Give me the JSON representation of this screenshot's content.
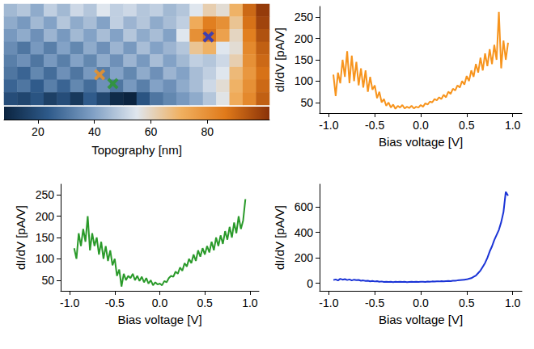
{
  "chart_data": [
    {
      "type": "heatmap",
      "tick_labels": false,
      "xlim": [
        0,
        20
      ],
      "ylim": [
        0,
        8
      ],
      "cells": [
        [
          45,
          48,
          42,
          50,
          45,
          52,
          48,
          55,
          50,
          52,
          48,
          50,
          45,
          48,
          55,
          62,
          58,
          70,
          90,
          100
        ],
        [
          42,
          38,
          45,
          40,
          48,
          42,
          46,
          40,
          50,
          44,
          48,
          42,
          46,
          50,
          72,
          85,
          80,
          65,
          88,
          98
        ],
        [
          38,
          42,
          36,
          44,
          38,
          45,
          40,
          46,
          40,
          48,
          42,
          46,
          40,
          55,
          80,
          88,
          75,
          60,
          85,
          95
        ],
        [
          35,
          30,
          38,
          32,
          40,
          34,
          42,
          36,
          44,
          38,
          46,
          40,
          44,
          48,
          65,
          70,
          55,
          58,
          82,
          92
        ],
        [
          32,
          36,
          30,
          38,
          32,
          40,
          34,
          42,
          36,
          44,
          38,
          46,
          40,
          45,
          50,
          48,
          52,
          62,
          80,
          90
        ],
        [
          30,
          26,
          34,
          28,
          36,
          30,
          38,
          32,
          40,
          34,
          42,
          36,
          44,
          40,
          46,
          50,
          55,
          68,
          78,
          88
        ],
        [
          26,
          30,
          24,
          32,
          26,
          34,
          28,
          36,
          30,
          38,
          32,
          40,
          36,
          42,
          46,
          52,
          58,
          70,
          80,
          90
        ],
        [
          20,
          18,
          22,
          16,
          20,
          14,
          24,
          18,
          10,
          8,
          22,
          30,
          34,
          38,
          42,
          48,
          56,
          72,
          82,
          92
        ]
      ],
      "colorbar": {
        "label": "Topography [nm]",
        "range": [
          8,
          102
        ],
        "ticks": [
          20,
          40,
          60,
          80
        ]
      },
      "marker": "x",
      "markers": [
        {
          "color": "#f7941d",
          "x": 7.2,
          "y": 5.6
        },
        {
          "color": "#2a9a2a",
          "x": 8.2,
          "y": 6.3
        },
        {
          "color": "#1a33d6",
          "x": 15.4,
          "y": 2.6
        }
      ]
    },
    {
      "type": "line",
      "xlabel": "Bias voltage [V]",
      "ylabel": "dI/dV [pA/V]",
      "grid": false,
      "xlim": [
        -1.1,
        1.1
      ],
      "xticks": [
        {
          "value": -1,
          "label": "-1.0"
        },
        {
          "value": -0.5,
          "label": "-0.5"
        },
        {
          "value": 0,
          "label": "0.0"
        },
        {
          "value": 0.5,
          "label": "0.5"
        },
        {
          "value": 1,
          "label": "1.0"
        }
      ],
      "ylim": [
        25,
        275
      ],
      "yticks": [
        50,
        100,
        150,
        200,
        250
      ],
      "x": [
        -0.95,
        -0.925,
        -0.9,
        -0.875,
        -0.85,
        -0.825,
        -0.8,
        -0.775,
        -0.75,
        -0.725,
        -0.7,
        -0.675,
        -0.65,
        -0.625,
        -0.6,
        -0.575,
        -0.55,
        -0.525,
        -0.5,
        -0.475,
        -0.45,
        -0.425,
        -0.4,
        -0.375,
        -0.35,
        -0.325,
        -0.3,
        -0.275,
        -0.25,
        -0.225,
        -0.2,
        -0.175,
        -0.15,
        -0.125,
        -0.1,
        -0.075,
        -0.05,
        -0.025,
        0,
        0.025,
        0.05,
        0.075,
        0.1,
        0.125,
        0.15,
        0.175,
        0.2,
        0.225,
        0.25,
        0.275,
        0.3,
        0.325,
        0.35,
        0.375,
        0.4,
        0.425,
        0.45,
        0.475,
        0.5,
        0.525,
        0.55,
        0.575,
        0.6,
        0.625,
        0.65,
        0.675,
        0.7,
        0.725,
        0.75,
        0.775,
        0.8,
        0.825,
        0.85,
        0.875,
        0.9,
        0.925,
        0.95
      ],
      "series": [
        {
          "color": "#f7941d",
          "values": [
            115,
            65,
            120,
            95,
            150,
            110,
            170,
            95,
            160,
            100,
            145,
            90,
            130,
            85,
            125,
            75,
            110,
            80,
            90,
            60,
            75,
            50,
            58,
            42,
            50,
            38,
            45,
            35,
            42,
            38,
            44,
            36,
            40,
            37,
            42,
            36,
            40,
            38,
            44,
            40,
            48,
            45,
            52,
            50,
            58,
            55,
            62,
            58,
            68,
            62,
            75,
            70,
            82,
            78,
            90,
            85,
            100,
            92,
            112,
            100,
            125,
            110,
            140,
            120,
            155,
            125,
            165,
            135,
            175,
            140,
            185,
            150,
            262,
            130,
            195,
            150,
            190
          ]
        }
      ]
    },
    {
      "type": "line",
      "xlabel": "Bias voltage [V]",
      "ylabel": "dI/dV [pA/V]",
      "grid": false,
      "xlim": [
        -1.1,
        1.1
      ],
      "xticks": [
        {
          "value": -1,
          "label": "-1.0"
        },
        {
          "value": -0.5,
          "label": "-0.5"
        },
        {
          "value": 0,
          "label": "0.0"
        },
        {
          "value": 0.5,
          "label": "0.5"
        },
        {
          "value": 1,
          "label": "1.0"
        }
      ],
      "ylim": [
        25,
        275
      ],
      "yticks": [
        50,
        100,
        150,
        200,
        250
      ],
      "x": [
        -0.95,
        -0.925,
        -0.9,
        -0.875,
        -0.85,
        -0.825,
        -0.8,
        -0.775,
        -0.75,
        -0.725,
        -0.7,
        -0.675,
        -0.65,
        -0.625,
        -0.6,
        -0.575,
        -0.55,
        -0.525,
        -0.5,
        -0.475,
        -0.45,
        -0.425,
        -0.4,
        -0.375,
        -0.35,
        -0.325,
        -0.3,
        -0.275,
        -0.25,
        -0.225,
        -0.2,
        -0.175,
        -0.15,
        -0.125,
        -0.1,
        -0.075,
        -0.05,
        -0.025,
        0,
        0.025,
        0.05,
        0.075,
        0.1,
        0.125,
        0.15,
        0.175,
        0.2,
        0.225,
        0.25,
        0.275,
        0.3,
        0.325,
        0.35,
        0.375,
        0.4,
        0.425,
        0.45,
        0.475,
        0.5,
        0.525,
        0.55,
        0.575,
        0.6,
        0.625,
        0.65,
        0.675,
        0.7,
        0.725,
        0.75,
        0.775,
        0.8,
        0.825,
        0.85,
        0.875,
        0.9,
        0.925,
        0.95
      ],
      "series": [
        {
          "color": "#2a9a2a",
          "values": [
            125,
            100,
            160,
            130,
            170,
            140,
            200,
            120,
            160,
            130,
            150,
            110,
            140,
            100,
            130,
            95,
            120,
            85,
            100,
            60,
            75,
            35,
            65,
            50,
            60,
            55,
            65,
            50,
            60,
            48,
            58,
            45,
            55,
            42,
            50,
            38,
            45,
            40,
            42,
            38,
            48,
            45,
            55,
            60,
            58,
            70,
            65,
            80,
            72,
            90,
            82,
            100,
            90,
            110,
            95,
            120,
            105,
            125,
            110,
            130,
            115,
            140,
            120,
            150,
            130,
            155,
            135,
            165,
            145,
            175,
            150,
            185,
            160,
            200,
            170,
            190,
            240
          ]
        }
      ]
    },
    {
      "type": "line",
      "xlabel": "Bias voltage [V]",
      "ylabel": "dI/dV [pA/V]",
      "grid": false,
      "xlim": [
        -1.1,
        1.1
      ],
      "xticks": [
        {
          "value": -1,
          "label": "-1.0"
        },
        {
          "value": -0.5,
          "label": "-0.5"
        },
        {
          "value": 0,
          "label": "0.0"
        },
        {
          "value": 0.5,
          "label": "0.5"
        },
        {
          "value": 1,
          "label": "1.0"
        }
      ],
      "ylim": [
        -60,
        780
      ],
      "yticks": [
        0,
        200,
        400,
        600
      ],
      "x": [
        -0.95,
        -0.925,
        -0.9,
        -0.875,
        -0.85,
        -0.825,
        -0.8,
        -0.775,
        -0.75,
        -0.725,
        -0.7,
        -0.675,
        -0.65,
        -0.625,
        -0.6,
        -0.575,
        -0.55,
        -0.525,
        -0.5,
        -0.475,
        -0.45,
        -0.425,
        -0.4,
        -0.375,
        -0.35,
        -0.325,
        -0.3,
        -0.275,
        -0.25,
        -0.225,
        -0.2,
        -0.175,
        -0.15,
        -0.125,
        -0.1,
        -0.075,
        -0.05,
        -0.025,
        0,
        0.025,
        0.05,
        0.075,
        0.1,
        0.125,
        0.15,
        0.175,
        0.2,
        0.225,
        0.25,
        0.275,
        0.3,
        0.325,
        0.35,
        0.375,
        0.4,
        0.425,
        0.45,
        0.475,
        0.5,
        0.525,
        0.55,
        0.575,
        0.6,
        0.625,
        0.65,
        0.675,
        0.7,
        0.725,
        0.75,
        0.775,
        0.8,
        0.825,
        0.85,
        0.875,
        0.9,
        0.925,
        0.95
      ],
      "series": [
        {
          "color": "#1a33d6",
          "values": [
            25,
            30,
            22,
            35,
            28,
            32,
            25,
            30,
            22,
            28,
            24,
            26,
            20,
            22,
            18,
            20,
            15,
            18,
            14,
            16,
            12,
            14,
            10,
            12,
            10,
            11,
            9,
            11,
            10,
            12,
            10,
            11,
            9,
            10,
            11,
            10,
            12,
            10,
            11,
            12,
            10,
            13,
            12,
            14,
            13,
            15,
            14,
            16,
            15,
            17,
            18,
            17,
            20,
            19,
            22,
            24,
            26,
            28,
            30,
            35,
            40,
            50,
            60,
            80,
            100,
            130,
            160,
            200,
            250,
            290,
            340,
            380,
            420,
            480,
            560,
            720,
            690
          ]
        }
      ]
    }
  ]
}
